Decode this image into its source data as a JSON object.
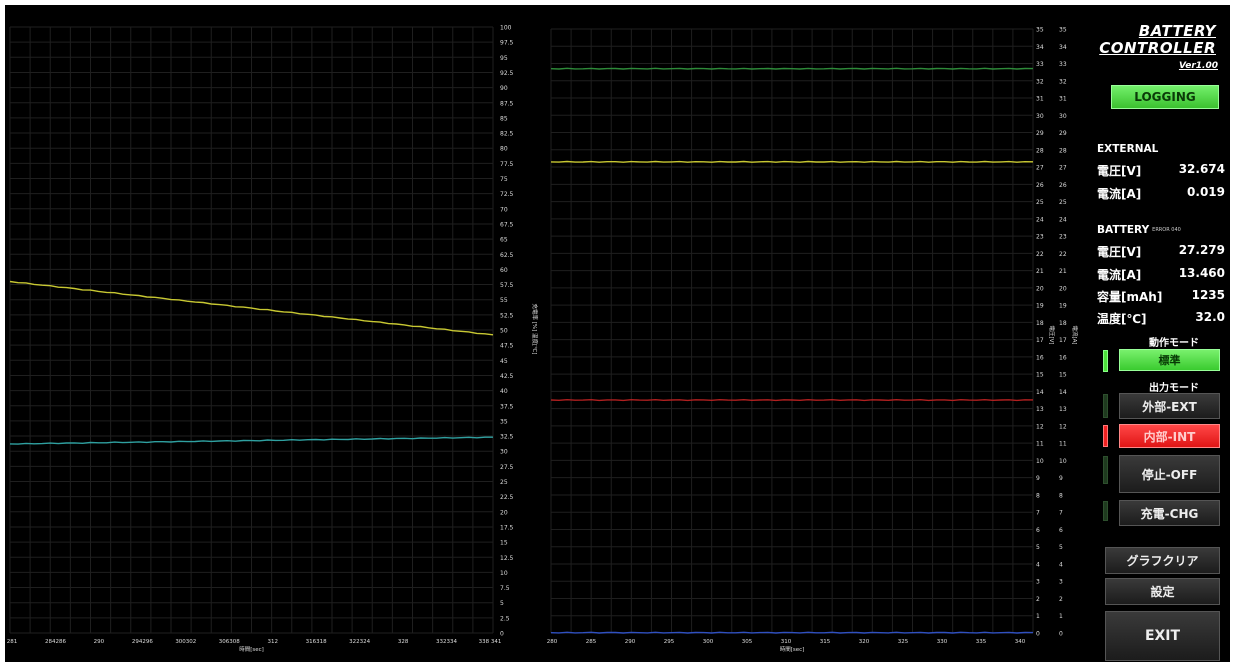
{
  "left_chart": {
    "x_ticks": [
      "281",
      "284286",
      "290",
      "294296",
      "300302",
      "306308",
      "312",
      "316318",
      "322324",
      "328",
      "332334",
      "338 341"
    ],
    "xlabel": "時間[sec]",
    "y_ticks": [
      "100",
      "97.5",
      "95",
      "92.5",
      "90",
      "87.5",
      "85",
      "82.5",
      "80",
      "77.5",
      "75",
      "72.5",
      "70",
      "67.5",
      "65",
      "62.5",
      "60",
      "57.5",
      "55",
      "52.5",
      "50",
      "47.5",
      "45",
      "42.5",
      "40",
      "37.5",
      "35",
      "32.5",
      "30",
      "27.5",
      "25",
      "22.5",
      "20",
      "17.5",
      "15",
      "12.5",
      "10",
      "7.5",
      "5",
      "2.5",
      "0"
    ],
    "ylabel": "充電率 [%] 温度[℃]"
  },
  "right_chart": {
    "x_ticks": [
      "280",
      "285",
      "290",
      "295",
      "300",
      "305",
      "310",
      "315",
      "320",
      "325",
      "330",
      "335",
      "340"
    ],
    "xlabel": "時間[sec]",
    "y_ticks": [
      "35",
      "34",
      "33",
      "32",
      "31",
      "30",
      "29",
      "28",
      "27",
      "26",
      "25",
      "24",
      "23",
      "22",
      "21",
      "20",
      "19",
      "18",
      "17",
      "16",
      "15",
      "14",
      "13",
      "12",
      "11",
      "10",
      "9",
      "8",
      "7",
      "6",
      "5",
      "4",
      "3",
      "2",
      "1",
      "0"
    ],
    "ylabel_voltage": "電圧[V]",
    "ylabel_current": "電流[A]"
  },
  "chart_data": [
    {
      "type": "line",
      "x": [
        281,
        341
      ],
      "ylim": [
        0,
        100
      ],
      "xlim": [
        281,
        341
      ],
      "series": [
        {
          "values": [
            58.0,
            49.2
          ],
          "color": "#c8c832"
        },
        {
          "values": [
            31.2,
            32.3
          ],
          "color": "#2fa0a0"
        }
      ]
    },
    {
      "type": "line",
      "x": [
        280,
        340
      ],
      "ylim": [
        0,
        35
      ],
      "xlim": [
        280,
        340
      ],
      "series": [
        {
          "values": [
            32.7,
            32.7
          ],
          "color": "#2e8b3a"
        },
        {
          "values": [
            27.3,
            27.3
          ],
          "color": "#c8c832"
        },
        {
          "values": [
            13.5,
            13.5
          ],
          "color": "#b02020"
        },
        {
          "values": [
            0.02,
            0.02
          ],
          "color": "#3050c0"
        }
      ]
    }
  ],
  "side": {
    "title_line1": "BATTERY",
    "title_line2": "CONTROLLER",
    "version": "Ver1.00",
    "logging": "LOGGING",
    "external_header": "EXTERNAL",
    "ext_voltage_label": "電圧[V]",
    "ext_voltage_value": "32.674",
    "ext_current_label": "電流[A]",
    "ext_current_value": "0.019",
    "battery_header": "BATTERY",
    "battery_error": "ERROR 040",
    "bat_voltage_label": "電圧[V]",
    "bat_voltage_value": "27.279",
    "bat_current_label": "電流[A]",
    "bat_current_value": "13.460",
    "bat_capacity_label": "容量[mAh]",
    "bat_capacity_value": "1235",
    "bat_temp_label": "温度[℃]",
    "bat_temp_value": "32.0",
    "op_mode_label": "動作モード",
    "op_mode_value": "標準",
    "out_mode_label": "出力モード",
    "btn_ext": "外部-EXT",
    "btn_int": "内部-INT",
    "btn_off": "停止-OFF",
    "btn_chg": "充電-CHG",
    "btn_clear": "グラフクリア",
    "btn_settings": "設定",
    "btn_exit": "EXIT"
  }
}
